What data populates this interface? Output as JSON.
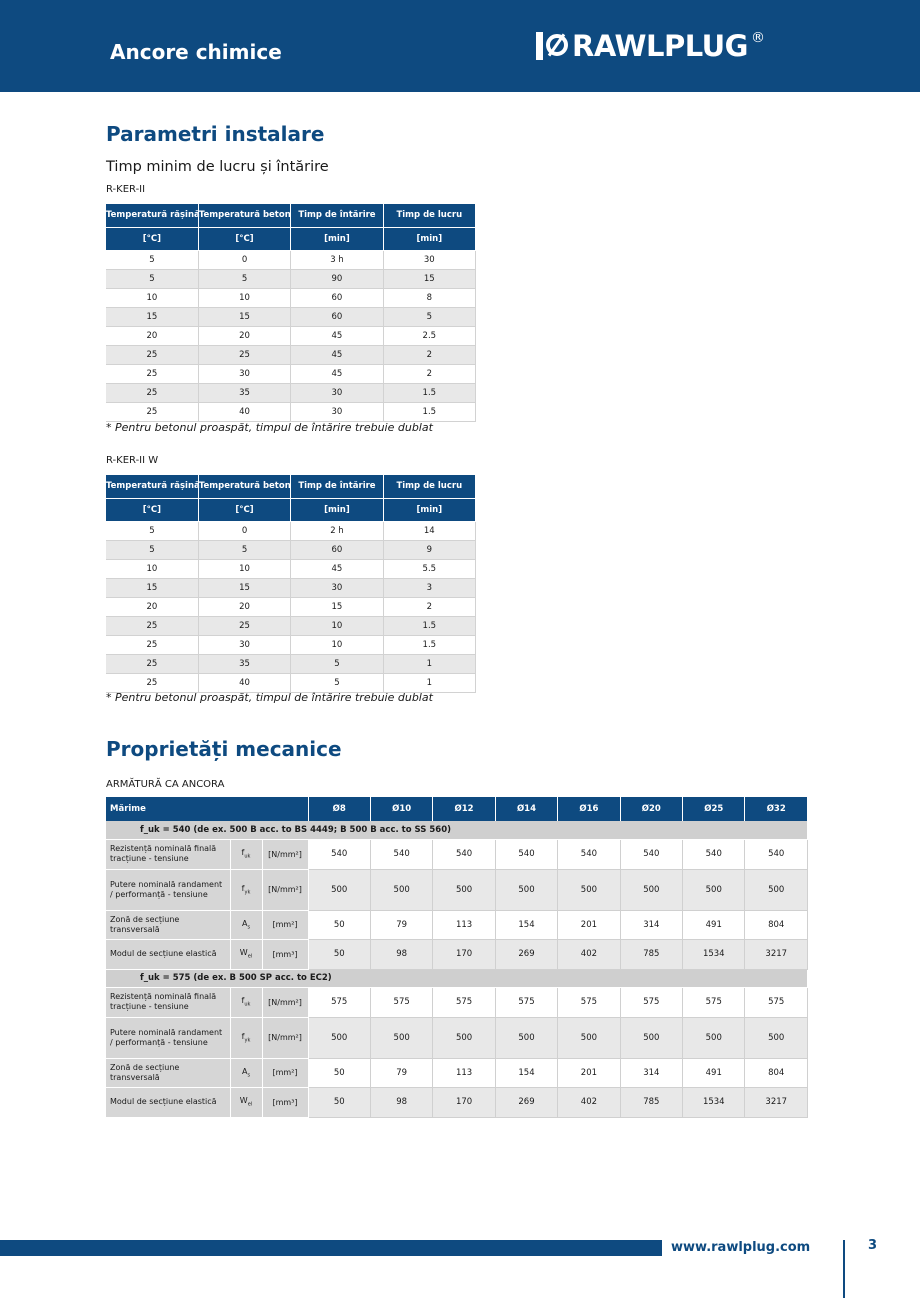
{
  "header": {
    "title": "Ancore chimice",
    "logo_text": "RAWLPLUG",
    "logo_reg": "®"
  },
  "section1": {
    "title": "Parametri instalare",
    "subtitle": "Timp minim de lucru și întărire",
    "table_a": {
      "label": "R-KER-II",
      "headers": [
        "Temperatură rășină",
        "Temperatură beton",
        "Timp de întărire",
        "Timp de lucru"
      ],
      "units": [
        "[°C]",
        "[°C]",
        "[min]",
        "[min]"
      ],
      "rows": [
        [
          "5",
          "0",
          "3 h",
          "30"
        ],
        [
          "5",
          "5",
          "90",
          "15"
        ],
        [
          "10",
          "10",
          "60",
          "8"
        ],
        [
          "15",
          "15",
          "60",
          "5"
        ],
        [
          "20",
          "20",
          "45",
          "2.5"
        ],
        [
          "25",
          "25",
          "45",
          "2"
        ],
        [
          "25",
          "30",
          "45",
          "2"
        ],
        [
          "25",
          "35",
          "30",
          "1.5"
        ],
        [
          "25",
          "40",
          "30",
          "1.5"
        ]
      ],
      "note": "* Pentru betonul proaspăt, timpul de întărire trebuie dublat"
    },
    "table_b": {
      "label": "R-KER-II  W",
      "headers": [
        "Temperatură rășină",
        "Temperatură beton",
        "Timp de întărire",
        "Timp de lucru"
      ],
      "units": [
        "[°C]",
        "[°C]",
        "[min]",
        "[min]"
      ],
      "rows": [
        [
          "5",
          "0",
          "2 h",
          "14"
        ],
        [
          "5",
          "5",
          "60",
          "9"
        ],
        [
          "10",
          "10",
          "45",
          "5.5"
        ],
        [
          "15",
          "15",
          "30",
          "3"
        ],
        [
          "20",
          "20",
          "15",
          "2"
        ],
        [
          "25",
          "25",
          "10",
          "1.5"
        ],
        [
          "25",
          "30",
          "10",
          "1.5"
        ],
        [
          "25",
          "35",
          "5",
          "1"
        ],
        [
          "25",
          "40",
          "5",
          "1"
        ]
      ],
      "note": "* Pentru betonul proaspăt, timpul de întărire trebuie dublat"
    }
  },
  "section2": {
    "title": "Proprietăți mecanice",
    "label": "ARMĂTURĂ  CA ANCORA",
    "header": [
      "Mărime",
      "Ø8",
      "Ø10",
      "Ø12",
      "Ø14",
      "Ø16",
      "Ø20",
      "Ø25",
      "Ø32"
    ],
    "groups": [
      {
        "title": "f_uk = 540 (de ex. 500 B acc. to BS 4449; B 500 B acc. to SS 560)",
        "rows": [
          {
            "label": "Rezistență nominală finală tracțiune - tensiune",
            "sym": "f",
            "sub": "uk",
            "unit": "[N/mm²]",
            "values": [
              "540",
              "540",
              "540",
              "540",
              "540",
              "540",
              "540",
              "540"
            ]
          },
          {
            "label": "Putere nominală randament / performanță - tensiune",
            "sym": "f",
            "sub": "yk",
            "unit": "[N/mm²]",
            "values": [
              "500",
              "500",
              "500",
              "500",
              "500",
              "500",
              "500",
              "500"
            ]
          },
          {
            "label": "Zonă de secțiune transversală",
            "sym": "A",
            "sub": "s",
            "unit": "[mm²]",
            "values": [
              "50",
              "79",
              "113",
              "154",
              "201",
              "314",
              "491",
              "804"
            ]
          },
          {
            "label": "Modul de secțiune elastică",
            "sym": "W",
            "sub": "el",
            "unit": "[mm³]",
            "values": [
              "50",
              "98",
              "170",
              "269",
              "402",
              "785",
              "1534",
              "3217"
            ]
          }
        ]
      },
      {
        "title": "f_uk = 575 (de ex. B 500 SP acc. to EC2)",
        "rows": [
          {
            "label": "Rezistență nominală finală tracțiune - tensiune",
            "sym": "f",
            "sub": "uk",
            "unit": "[N/mm²]",
            "values": [
              "575",
              "575",
              "575",
              "575",
              "575",
              "575",
              "575",
              "575"
            ]
          },
          {
            "label": "Putere nominală randament / performanță - tensiune",
            "sym": "f",
            "sub": "yk",
            "unit": "[N/mm²]",
            "values": [
              "500",
              "500",
              "500",
              "500",
              "500",
              "500",
              "500",
              "500"
            ]
          },
          {
            "label": "Zonă de secțiune transversală",
            "sym": "A",
            "sub": "s",
            "unit": "[mm²]",
            "values": [
              "50",
              "79",
              "113",
              "154",
              "201",
              "314",
              "491",
              "804"
            ]
          },
          {
            "label": "Modul de secțiune elastică",
            "sym": "W",
            "sub": "el",
            "unit": "[mm³]",
            "values": [
              "50",
              "98",
              "170",
              "269",
              "402",
              "785",
              "1534",
              "3217"
            ]
          }
        ]
      }
    ]
  },
  "footer": {
    "url": "www.rawlplug.com",
    "page": "3"
  }
}
